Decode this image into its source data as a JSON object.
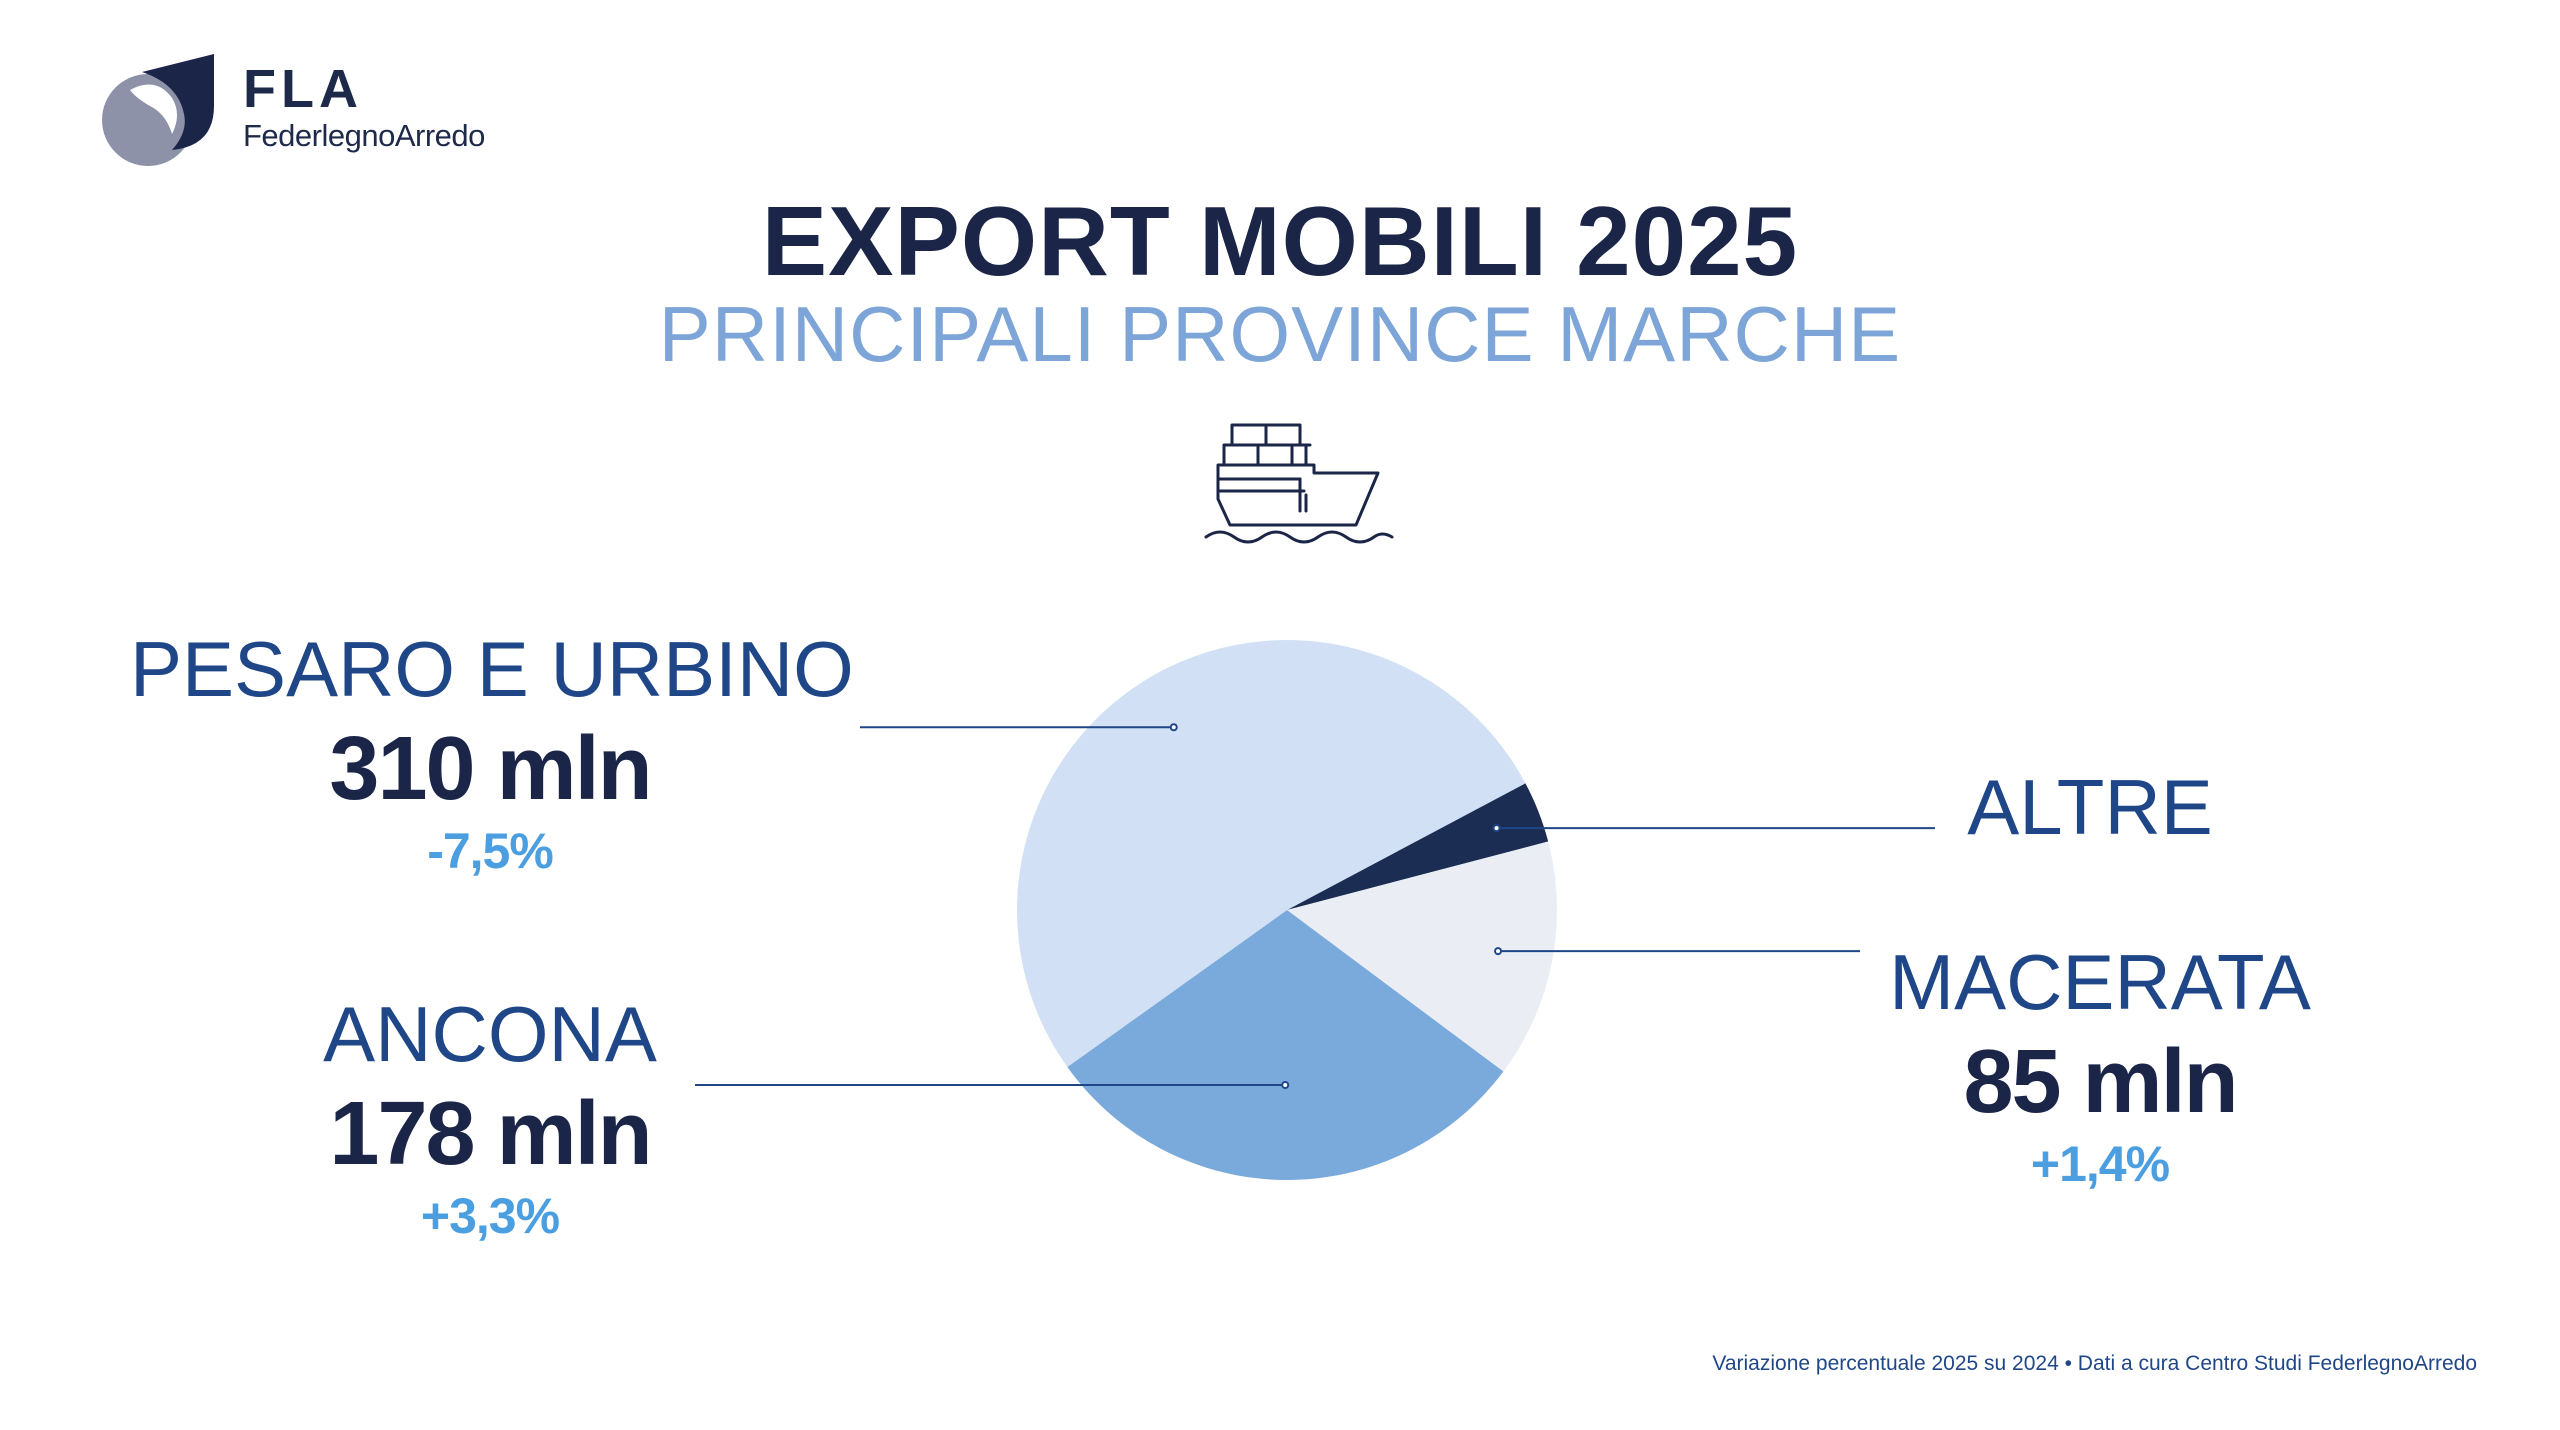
{
  "logo": {
    "short": "FLA",
    "name": "FederlegnoArredo"
  },
  "title": "EXPORT MOBILI 2025",
  "subtitle": "PRINCIPALI PROVINCE MARCHE",
  "icon": "cargo-ship-icon",
  "colors": {
    "pesaro": "#d1e0f4",
    "ancona": "#7aaadb",
    "macerata": "#eaedf3",
    "altre": "#1b2d52",
    "title": "#1a2547",
    "subtitle": "#7ea5d8",
    "change": "#4b9ee0",
    "name": "#1f4788"
  },
  "chart_data": {
    "type": "pie",
    "title": "EXPORT MOBILI 2025",
    "subtitle": "PRINCIPALI PROVINCE MARCHE",
    "slices": [
      {
        "key": "pesaro",
        "name": "PESARO E URBINO",
        "value": 310,
        "label": "310 mln",
        "change": "-7,5%"
      },
      {
        "key": "altre",
        "name": "ALTRE",
        "value": 22,
        "label": "",
        "change": ""
      },
      {
        "key": "macerata",
        "name": "MACERATA",
        "value": 85,
        "label": "85 mln",
        "change": "+1,4%"
      },
      {
        "key": "ancona",
        "name": "ANCONA",
        "value": 178,
        "label": "178 mln",
        "change": "+3,3%"
      }
    ]
  },
  "labels": {
    "pesaro": {
      "name": "PESARO E URBINO",
      "value": "310 mln",
      "change": "-7,5%"
    },
    "ancona": {
      "name": "ANCONA",
      "value": "178 mln",
      "change": "+3,3%"
    },
    "altre": {
      "name": "ALTRE"
    },
    "macerata": {
      "name": "MACERATA",
      "value": "85 mln",
      "change": "+1,4%"
    }
  },
  "footnote": "Variazione percentuale 2025 su 2024 • Dati a cura Centro Studi FederlegnoArredo"
}
